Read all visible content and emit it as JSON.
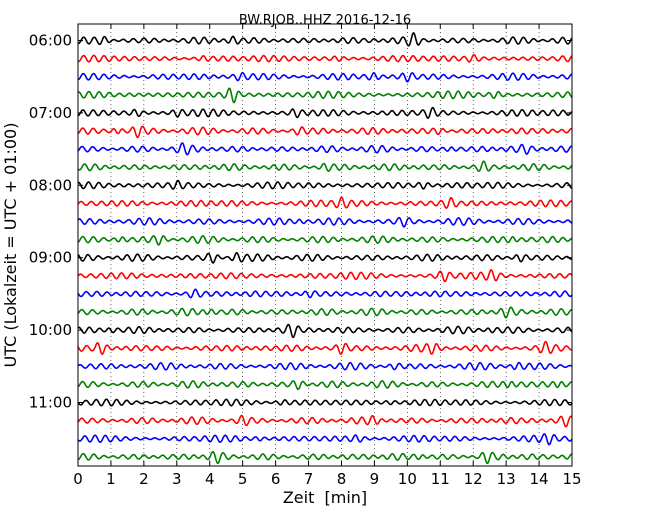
{
  "chart_data": {
    "type": "line",
    "title": "BW.RJOB..HHZ 2016-12-16",
    "xlabel": "Zeit  [min]",
    "ylabel": "UTC (Lokalzeit = UTC + 01:00)",
    "xlim": [
      0,
      15
    ],
    "x_ticks": [
      "0",
      "1",
      "2",
      "3",
      "4",
      "5",
      "6",
      "7",
      "8",
      "9",
      "10",
      "11",
      "12",
      "13",
      "14",
      "15"
    ],
    "y_tick_labels": [
      "06:00",
      "07:00",
      "08:00",
      "09:00",
      "10:00",
      "11:00"
    ],
    "row_interval_minutes": 15,
    "rows_per_hour": 4,
    "row_count": 24,
    "grid": "vertical dotted",
    "colors": [
      "#000000",
      "#ff0000",
      "#0000ff",
      "#008000"
    ],
    "traces": [
      {
        "start": "06:00",
        "color": "#000000",
        "bursts": [
          {
            "t": 0.8,
            "a": 0.55
          },
          {
            "t": 4.7,
            "a": 0.55
          },
          {
            "t": 10.2,
            "a": 0.85
          }
        ]
      },
      {
        "start": "06:15",
        "color": "#ff0000",
        "bursts": [
          {
            "t": 3.8,
            "a": 0.5
          },
          {
            "t": 7.9,
            "a": 0.45
          },
          {
            "t": 12.0,
            "a": 0.5
          }
        ]
      },
      {
        "start": "06:30",
        "color": "#0000ff",
        "bursts": [
          {
            "t": 4.9,
            "a": 0.6
          },
          {
            "t": 9.0,
            "a": 0.65
          },
          {
            "t": 10.0,
            "a": 0.6
          }
        ]
      },
      {
        "start": "06:45",
        "color": "#008000",
        "bursts": [
          {
            "t": 4.7,
            "a": 1.3
          },
          {
            "t": 12.7,
            "a": 0.7
          }
        ]
      },
      {
        "start": "07:00",
        "color": "#000000",
        "bursts": [
          {
            "t": 1.8,
            "a": 0.65
          },
          {
            "t": 3.0,
            "a": 0.65
          },
          {
            "t": 6.6,
            "a": 0.6
          },
          {
            "t": 10.7,
            "a": 0.55
          }
        ]
      },
      {
        "start": "07:15",
        "color": "#ff0000",
        "bursts": [
          {
            "t": 1.2,
            "a": 0.8
          },
          {
            "t": 1.8,
            "a": 0.75
          },
          {
            "t": 6.7,
            "a": 0.5
          },
          {
            "t": 11.0,
            "a": 0.55
          }
        ]
      },
      {
        "start": "07:30",
        "color": "#0000ff",
        "bursts": [
          {
            "t": 3.2,
            "a": 0.5
          },
          {
            "t": 11.3,
            "a": 0.55
          },
          {
            "t": 13.6,
            "a": 0.5
          }
        ]
      },
      {
        "start": "07:45",
        "color": "#008000",
        "bursts": [
          {
            "t": 12.3,
            "a": 0.65
          },
          {
            "t": 7.5,
            "a": 0.45
          }
        ]
      },
      {
        "start": "08:00",
        "color": "#000000",
        "bursts": [
          {
            "t": 10.5,
            "a": 0.75
          },
          {
            "t": 3.0,
            "a": 0.45
          }
        ]
      },
      {
        "start": "08:15",
        "color": "#ff0000",
        "bursts": [
          {
            "t": 8.0,
            "a": 0.65
          },
          {
            "t": 11.3,
            "a": 0.6
          }
        ]
      },
      {
        "start": "08:30",
        "color": "#0000ff",
        "bursts": [
          {
            "t": 6.8,
            "a": 0.5
          },
          {
            "t": 9.9,
            "a": 0.5
          }
        ]
      },
      {
        "start": "08:45",
        "color": "#008000",
        "bursts": [
          {
            "t": 1.3,
            "a": 0.75
          },
          {
            "t": 2.5,
            "a": 0.65
          },
          {
            "t": 13.2,
            "a": 0.55
          }
        ]
      },
      {
        "start": "09:00",
        "color": "#000000",
        "bursts": [
          {
            "t": 4.1,
            "a": 0.9
          },
          {
            "t": 4.8,
            "a": 0.8
          },
          {
            "t": 13.4,
            "a": 0.7
          }
        ]
      },
      {
        "start": "09:15",
        "color": "#ff0000",
        "bursts": [
          {
            "t": 11.1,
            "a": 0.75
          },
          {
            "t": 12.6,
            "a": 0.65
          }
        ]
      },
      {
        "start": "09:30",
        "color": "#0000ff",
        "bursts": [
          {
            "t": 3.5,
            "a": 0.55
          },
          {
            "t": 7.0,
            "a": 0.5
          }
        ]
      },
      {
        "start": "09:45",
        "color": "#008000",
        "bursts": [
          {
            "t": 4.0,
            "a": 0.6
          },
          {
            "t": 13.0,
            "a": 0.55
          }
        ]
      },
      {
        "start": "10:00",
        "color": "#000000",
        "bursts": [
          {
            "t": 1.0,
            "a": 0.5
          },
          {
            "t": 6.5,
            "a": 0.8
          },
          {
            "t": 12.5,
            "a": 0.5
          }
        ]
      },
      {
        "start": "10:15",
        "color": "#ff0000",
        "bursts": [
          {
            "t": 0.7,
            "a": 0.9
          },
          {
            "t": 8.0,
            "a": 0.75
          },
          {
            "t": 10.8,
            "a": 0.7
          },
          {
            "t": 14.2,
            "a": 0.6
          }
        ]
      },
      {
        "start": "10:30",
        "color": "#0000ff",
        "bursts": [
          {
            "t": 13.3,
            "a": 0.75
          },
          {
            "t": 9.6,
            "a": 0.45
          }
        ]
      },
      {
        "start": "10:45",
        "color": "#008000",
        "bursts": [
          {
            "t": 6.7,
            "a": 0.65
          },
          {
            "t": 13.1,
            "a": 0.75
          },
          {
            "t": 14.6,
            "a": 0.7
          }
        ]
      },
      {
        "start": "11:00",
        "color": "#000000",
        "bursts": [
          {
            "t": 6.2,
            "a": 0.5
          },
          {
            "t": 9.5,
            "a": 0.55
          }
        ]
      },
      {
        "start": "11:15",
        "color": "#ff0000",
        "bursts": [
          {
            "t": 5.0,
            "a": 0.55
          },
          {
            "t": 9.0,
            "a": 0.55
          },
          {
            "t": 14.8,
            "a": 0.6
          }
        ]
      },
      {
        "start": "11:30",
        "color": "#0000ff",
        "bursts": [
          {
            "t": 5.5,
            "a": 0.5
          },
          {
            "t": 8.5,
            "a": 0.5
          },
          {
            "t": 14.3,
            "a": 0.5
          }
        ]
      },
      {
        "start": "11:45",
        "color": "#008000",
        "bursts": [
          {
            "t": 4.2,
            "a": 0.6
          },
          {
            "t": 10.4,
            "a": 0.55
          },
          {
            "t": 12.4,
            "a": 0.75
          }
        ]
      }
    ]
  }
}
